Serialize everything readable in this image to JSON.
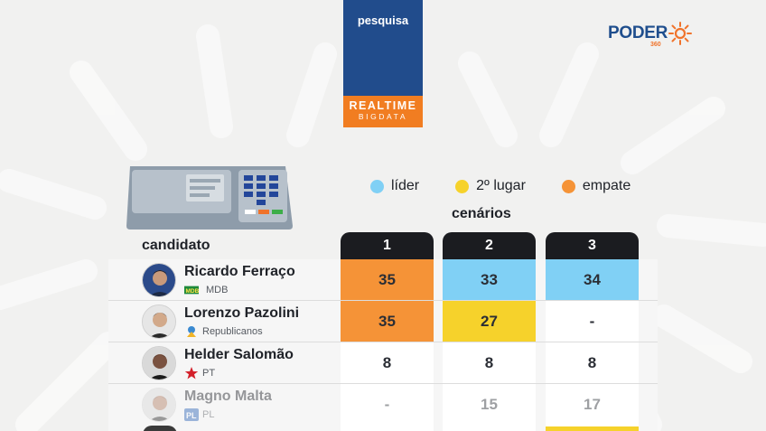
{
  "header": {
    "badge_label": "pesquisa",
    "brand_line1": "REALTIME",
    "brand_line2": "BIGDATA"
  },
  "logo": {
    "text": "PODER",
    "suffix": "360",
    "icon": "sun-icon"
  },
  "legend": [
    {
      "label": "líder",
      "color": "#80d0f5"
    },
    {
      "label": "2º lugar",
      "color": "#f6d22b"
    },
    {
      "label": "empate",
      "color": "#f59337"
    }
  ],
  "table": {
    "scenarios_label": "cenários",
    "candidate_label": "candidato",
    "scenarios": [
      "1",
      "2",
      "3"
    ],
    "rows": [
      {
        "name": "Ricardo Ferraço",
        "party": "MDB",
        "party_icon": "mdb-logo-icon",
        "values": [
          "35",
          "33",
          "34"
        ],
        "status": [
          "empate",
          "líder",
          "líder"
        ]
      },
      {
        "name": "Lorenzo Pazolini",
        "party": "Republicanos",
        "party_icon": "republicanos-logo-icon",
        "values": [
          "35",
          "27",
          "-"
        ],
        "status": [
          "empate",
          "2º lugar",
          ""
        ]
      },
      {
        "name": "Helder Salomão",
        "party": "PT",
        "party_icon": "pt-star-icon",
        "values": [
          "8",
          "8",
          "8"
        ],
        "status": [
          "",
          "",
          ""
        ]
      },
      {
        "name": "Magno Malta",
        "party": "PL",
        "party_icon": "pl-logo-icon",
        "values": [
          "-",
          "15",
          "17"
        ],
        "status": [
          "",
          "",
          ""
        ]
      }
    ]
  }
}
